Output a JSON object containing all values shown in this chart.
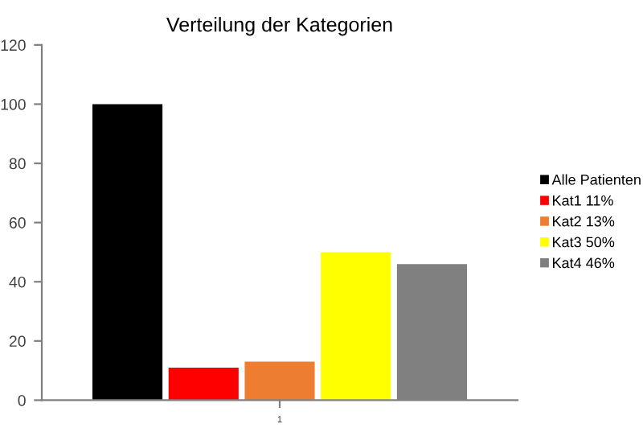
{
  "chart_data": {
    "type": "bar",
    "title": "Verteilung der Kategorien",
    "categories": [
      "1"
    ],
    "series": [
      {
        "name": "Alle Patienten",
        "color": "#000000",
        "values": [
          100
        ]
      },
      {
        "name": "Kat1 11%",
        "color": "#ff0000",
        "values": [
          11
        ]
      },
      {
        "name": "Kat2 13%",
        "color": "#ed7d31",
        "values": [
          13
        ]
      },
      {
        "name": "Kat3 50%",
        "color": "#ffff00",
        "values": [
          50
        ]
      },
      {
        "name": "Kat4 46%",
        "color": "#808080",
        "values": [
          46
        ]
      }
    ],
    "ylim": [
      0,
      120
    ],
    "yticks": [
      0,
      20,
      40,
      60,
      80,
      100,
      120
    ],
    "grid": false,
    "legend": "right"
  }
}
